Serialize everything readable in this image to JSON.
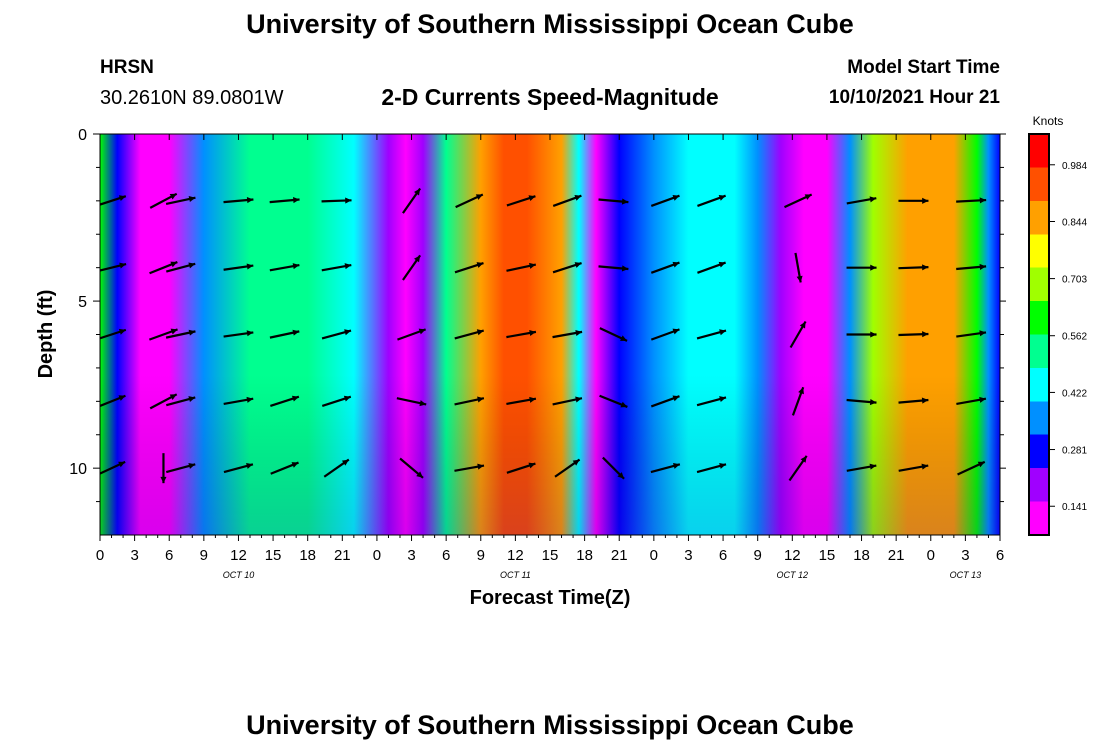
{
  "header": {
    "title": "University of Southern Mississippi Ocean Cube",
    "station": "HRSN",
    "coords": "30.2610N  89.0801W",
    "plot_title": "2-D Currents Speed-Magnitude",
    "model_start_label": "Model Start Time",
    "model_start_value": "10/10/2021 Hour 21"
  },
  "footer": {
    "title": "University of Southern Mississippi Ocean Cube"
  },
  "colors": {
    "scale": [
      "#ff00ff",
      "#a000ff",
      "#0000ff",
      "#0090ff",
      "#00ffff",
      "#00ff90",
      "#00ff00",
      "#a0ff00",
      "#ffff00",
      "#ffa000",
      "#ff5000",
      "#ff0000"
    ]
  },
  "chart_data": {
    "type": "heatmap",
    "title": "2-D Currents Speed-Magnitude",
    "xlabel": "Forecast Time(Z)",
    "ylabel": "Depth (ft)",
    "x_unit": "hours since Oct 10 00Z",
    "xlim": [
      0,
      78
    ],
    "ylim": [
      0,
      12
    ],
    "x_ticks": [
      0,
      3,
      6,
      9,
      12,
      15,
      18,
      21,
      24,
      27,
      30,
      33,
      36,
      39,
      42,
      45,
      48,
      51,
      54,
      57,
      60,
      63,
      66,
      69,
      72,
      75,
      78
    ],
    "x_tick_labels": [
      "0",
      "3",
      "6",
      "9",
      "12",
      "15",
      "18",
      "21",
      "0",
      "3",
      "6",
      "9",
      "12",
      "15",
      "18",
      "21",
      "0",
      "3",
      "6",
      "9",
      "12",
      "15",
      "18",
      "21",
      "0",
      "3",
      "6"
    ],
    "y_ticks": [
      0,
      5,
      10
    ],
    "y_tick_labels": [
      "0",
      "5",
      "10"
    ],
    "date_labels": [
      {
        "hour": 12,
        "label": "OCT 10"
      },
      {
        "hour": 36,
        "label": "OCT 11"
      },
      {
        "hour": 60,
        "label": "OCT 12"
      },
      {
        "hour": 75,
        "label": "OCT 13"
      }
    ],
    "colorbar": {
      "unit": "Knots",
      "range": [
        0.07,
        1.06
      ],
      "tick_values": [
        0.141,
        0.281,
        0.422,
        0.562,
        0.703,
        0.844,
        0.984
      ],
      "tick_labels": [
        "0.141",
        "0.281",
        "0.422",
        "0.562",
        "0.703",
        "0.844",
        "0.984"
      ]
    },
    "speed_profile_knots": [
      {
        "hour": 0,
        "speed": 0.58
      },
      {
        "hour": 1.5,
        "speed": 0.3
      },
      {
        "hour": 3.5,
        "speed": 0.07
      },
      {
        "hour": 6,
        "speed": 0.12
      },
      {
        "hour": 9,
        "speed": 0.36
      },
      {
        "hour": 13,
        "speed": 0.5
      },
      {
        "hour": 18,
        "speed": 0.52
      },
      {
        "hour": 22,
        "speed": 0.42
      },
      {
        "hour": 25,
        "speed": 0.22
      },
      {
        "hour": 26.5,
        "speed": 0.1
      },
      {
        "hour": 28,
        "speed": 0.18
      },
      {
        "hour": 30,
        "speed": 0.55
      },
      {
        "hour": 33,
        "speed": 0.85
      },
      {
        "hour": 35,
        "speed": 0.97
      },
      {
        "hour": 37,
        "speed": 0.95
      },
      {
        "hour": 40,
        "speed": 0.85
      },
      {
        "hour": 41.5,
        "speed": 0.4
      },
      {
        "hour": 43,
        "speed": 0.12
      },
      {
        "hour": 45,
        "speed": 0.26
      },
      {
        "hour": 48,
        "speed": 0.36
      },
      {
        "hour": 51,
        "speed": 0.43
      },
      {
        "hour": 55,
        "speed": 0.45
      },
      {
        "hour": 57,
        "speed": 0.38
      },
      {
        "hour": 59,
        "speed": 0.2
      },
      {
        "hour": 61,
        "speed": 0.08
      },
      {
        "hour": 63,
        "speed": 0.12
      },
      {
        "hour": 65,
        "speed": 0.35
      },
      {
        "hour": 67,
        "speed": 0.7
      },
      {
        "hour": 70,
        "speed": 0.82
      },
      {
        "hour": 74,
        "speed": 0.82
      },
      {
        "hour": 76,
        "speed": 0.6
      },
      {
        "hour": 77,
        "speed": 0.35
      },
      {
        "hour": 78,
        "speed": 0.25
      }
    ],
    "vector_rows_depth_ft": [
      2,
      4,
      6,
      8,
      10
    ],
    "vectors": [
      {
        "hour": 1,
        "angles": [
          18,
          14,
          18,
          22,
          25
        ]
      },
      {
        "hour": 5.5,
        "angles": [
          28,
          22,
          20,
          28,
          270
        ]
      },
      {
        "hour": 7,
        "angles": [
          12,
          15,
          12,
          15,
          15
        ]
      },
      {
        "hour": 12,
        "angles": [
          5,
          8,
          8,
          10,
          15
        ]
      },
      {
        "hour": 16,
        "angles": [
          5,
          10,
          12,
          18,
          22
        ]
      },
      {
        "hour": 20.5,
        "angles": [
          2,
          10,
          15,
          18,
          35
        ]
      },
      {
        "hour": 27,
        "angles": [
          55,
          55,
          20,
          348,
          320
        ]
      },
      {
        "hour": 32,
        "angles": [
          25,
          18,
          15,
          12,
          10
        ]
      },
      {
        "hour": 36.5,
        "angles": [
          18,
          12,
          10,
          10,
          18
        ]
      },
      {
        "hour": 40.5,
        "angles": [
          20,
          18,
          10,
          12,
          35
        ]
      },
      {
        "hour": 44.5,
        "angles": [
          355,
          355,
          335,
          338,
          315
        ]
      },
      {
        "hour": 49,
        "angles": [
          20,
          20,
          20,
          20,
          15
        ]
      },
      {
        "hour": 53,
        "angles": [
          20,
          20,
          15,
          15,
          15
        ]
      },
      {
        "hour": 60.5,
        "angles": [
          25,
          280,
          60,
          70,
          55
        ]
      },
      {
        "hour": 66,
        "angles": [
          10,
          0,
          0,
          355,
          10
        ]
      },
      {
        "hour": 70.5,
        "angles": [
          0,
          2,
          2,
          5,
          10
        ]
      },
      {
        "hour": 75.5,
        "angles": [
          3,
          5,
          8,
          10,
          25
        ]
      }
    ]
  }
}
